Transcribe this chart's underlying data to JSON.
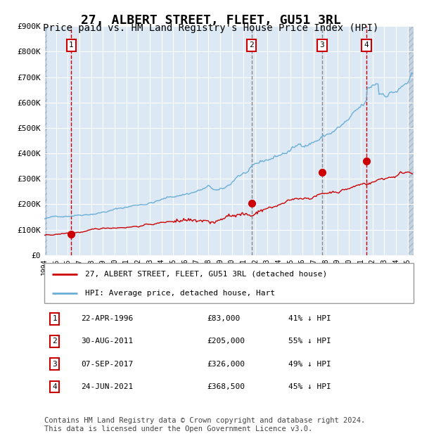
{
  "title": "27, ALBERT STREET, FLEET, GU51 3RL",
  "subtitle": "Price paid vs. HM Land Registry's House Price Index (HPI)",
  "title_fontsize": 13,
  "subtitle_fontsize": 10,
  "hpi_color": "#6baed6",
  "price_color": "#cc0000",
  "marker_color": "#cc0000",
  "plot_bg": "#dce9f5",
  "ylim": [
    0,
    900000
  ],
  "yticks": [
    0,
    100000,
    200000,
    300000,
    400000,
    500000,
    600000,
    700000,
    800000,
    900000
  ],
  "xlim_start": 1994.0,
  "xlim_end": 2025.5,
  "transactions": [
    {
      "num": 1,
      "date": "22-APR-1996",
      "year": 1996.3,
      "price": 83000,
      "pct": "41%",
      "line_color": "#cc0000"
    },
    {
      "num": 2,
      "date": "30-AUG-2011",
      "year": 2011.67,
      "price": 205000,
      "pct": "55%",
      "line_color": "#888888"
    },
    {
      "num": 3,
      "date": "07-SEP-2017",
      "year": 2017.69,
      "price": 326000,
      "pct": "49%",
      "line_color": "#888888"
    },
    {
      "num": 4,
      "date": "24-JUN-2021",
      "year": 2021.48,
      "price": 368500,
      "pct": "45%",
      "line_color": "#cc0000"
    }
  ],
  "legend_label_price": "27, ALBERT STREET, FLEET, GU51 3RL (detached house)",
  "legend_label_hpi": "HPI: Average price, detached house, Hart",
  "table_rows": [
    {
      "num": 1,
      "date": "22-APR-1996",
      "price": "£83,000",
      "pct": "41% ↓ HPI"
    },
    {
      "num": 2,
      "date": "30-AUG-2011",
      "price": "£205,000",
      "pct": "55% ↓ HPI"
    },
    {
      "num": 3,
      "date": "07-SEP-2017",
      "price": "£326,000",
      "pct": "49% ↓ HPI"
    },
    {
      "num": 4,
      "date": "24-JUN-2021",
      "price": "£368,500",
      "pct": "45% ↓ HPI"
    }
  ],
  "footer": "Contains HM Land Registry data © Crown copyright and database right 2024.\nThis data is licensed under the Open Government Licence v3.0.",
  "footer_fontsize": 7.5
}
